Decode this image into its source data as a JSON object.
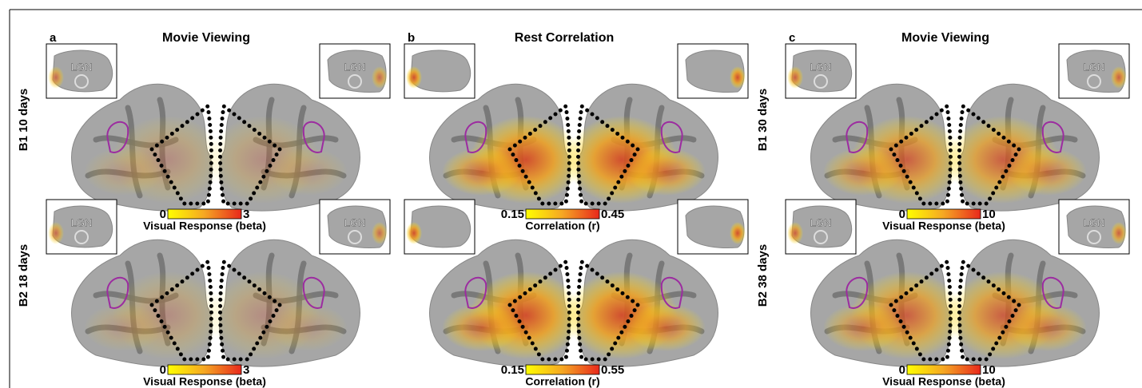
{
  "panels": [
    {
      "letter": "a",
      "title": "Movie Viewing",
      "rows": [
        {
          "label": "B1 10 days",
          "inset_labels": [
            "LGN",
            "LGN"
          ],
          "colorbar": {
            "min": 0,
            "max": 3,
            "title": "Visual Response (beta)"
          }
        },
        {
          "label": "B2 18 days",
          "inset_labels": [
            "LGN",
            "LGN"
          ],
          "colorbar": {
            "min": 0,
            "max": 3,
            "title": "Visual Response (beta)"
          }
        }
      ]
    },
    {
      "letter": "b",
      "title": "Rest Correlation",
      "rows": [
        {
          "colorbar": {
            "min": 0.15,
            "max": 0.45,
            "title": "Correlation (r)"
          }
        },
        {
          "colorbar": {
            "min": 0.15,
            "max": 0.55,
            "title": "Correlation (r)"
          }
        }
      ]
    },
    {
      "letter": "c",
      "title": "Movie Viewing",
      "rows": [
        {
          "label": "B1 30 days",
          "inset_labels": [
            "LGN",
            "LGN"
          ],
          "colorbar": {
            "min": 0,
            "max": 10,
            "title": "Visual Response (beta)"
          }
        },
        {
          "label": "B2 38 days",
          "inset_labels": [
            "LGN",
            "LGN"
          ],
          "colorbar": {
            "min": 0,
            "max": 10,
            "title": "Visual Response (beta)"
          }
        }
      ]
    }
  ]
}
